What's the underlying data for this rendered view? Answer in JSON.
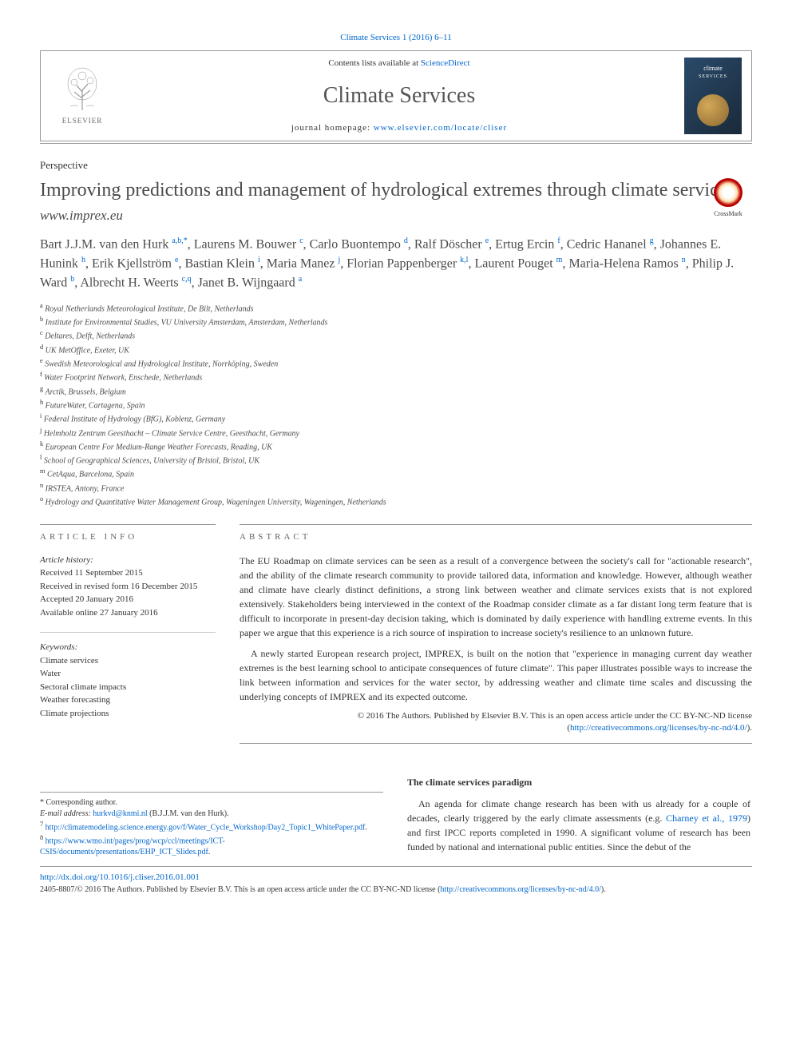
{
  "journal_ref": "Climate Services 1 (2016) 6–11",
  "header": {
    "contents_prefix": "Contents lists available at ",
    "contents_link": "ScienceDirect",
    "journal_name": "Climate Services",
    "homepage_prefix": "journal homepage: ",
    "homepage_link": "www.elsevier.com/locate/cliser",
    "publisher": "ELSEVIER",
    "cover_title": "climate",
    "cover_subtitle": "SERVICES"
  },
  "article_type": "Perspective",
  "title": "Improving predictions and management of hydrological extremes through climate services",
  "subtitle": "www.imprex.eu",
  "crossmark": "CrossMark",
  "authors_html": "Bart J.J.M. van den Hurk <sup>a,b,*</sup>, Laurens M. Bouwer <sup>c</sup>, Carlo Buontempo <sup>d</sup>, Ralf Döscher <sup>e</sup>, Ertug Ercin <sup>f</sup>, Cedric Hananel <sup>g</sup>, Johannes E. Hunink <sup>h</sup>, Erik Kjellström <sup>e</sup>, Bastian Klein <sup>i</sup>, Maria Manez <sup>j</sup>, Florian Pappenberger <sup>k,l</sup>, Laurent Pouget <sup>m</sup>, Maria-Helena Ramos <sup>n</sup>, Philip J. Ward <sup>b</sup>, Albrecht H. Weerts <sup>c,q</sup>, Janet B. Wijngaard <sup>a</sup>",
  "affiliations": [
    {
      "sup": "a",
      "text": "Royal Netherlands Meteorological Institute, De Bilt, Netherlands"
    },
    {
      "sup": "b",
      "text": "Institute for Environmental Studies, VU University Amsterdam, Amsterdam, Netherlands"
    },
    {
      "sup": "c",
      "text": "Deltares, Delft, Netherlands"
    },
    {
      "sup": "d",
      "text": "UK MetOffice, Exeter, UK"
    },
    {
      "sup": "e",
      "text": "Swedish Meteorological and Hydrological Institute, Norrköping, Sweden"
    },
    {
      "sup": "f",
      "text": "Water Footprint Network, Enschede, Netherlands"
    },
    {
      "sup": "g",
      "text": "Arctik, Brussels, Belgium"
    },
    {
      "sup": "h",
      "text": "FutureWater, Cartagena, Spain"
    },
    {
      "sup": "i",
      "text": "Federal Institute of Hydrology (BfG), Koblenz, Germany"
    },
    {
      "sup": "j",
      "text": "Helmholtz Zentrum Geesthacht – Climate Service Centre, Geesthacht, Germany"
    },
    {
      "sup": "k",
      "text": "European Centre For Medium-Range Weather Forecasts, Reading, UK"
    },
    {
      "sup": "l",
      "text": "School of Geographical Sciences, University of Bristol, Bristol, UK"
    },
    {
      "sup": "m",
      "text": "CetAqua, Barcelona, Spain"
    },
    {
      "sup": "n",
      "text": "IRSTEA, Antony, France"
    },
    {
      "sup": "o",
      "text": "Hydrology and Quantitative Water Management Group, Wageningen University, Wageningen, Netherlands"
    }
  ],
  "article_info": {
    "heading": "ARTICLE INFO",
    "history_label": "Article history:",
    "history": [
      "Received 11 September 2015",
      "Received in revised form 16 December 2015",
      "Accepted 20 January 2016",
      "Available online 27 January 2016"
    ],
    "keywords_label": "Keywords:",
    "keywords": [
      "Climate services",
      "Water",
      "Sectoral climate impacts",
      "Weather forecasting",
      "Climate projections"
    ]
  },
  "abstract": {
    "heading": "ABSTRACT",
    "paragraphs": [
      "The EU Roadmap on climate services can be seen as a result of a convergence between the society's call for \"actionable research\", and the ability of the climate research community to provide tailored data, information and knowledge. However, although weather and climate have clearly distinct definitions, a strong link between weather and climate services exists that is not explored extensively. Stakeholders being interviewed in the context of the Roadmap consider climate as a far distant long term feature that is difficult to incorporate in present-day decision taking, which is dominated by daily experience with handling extreme events. In this paper we argue that this experience is a rich source of inspiration to increase society's resilience to an unknown future.",
      "A newly started European research project, IMPREX, is built on the notion that \"experience in managing current day weather extremes is the best learning school to anticipate consequences of future climate\". This paper illustrates possible ways to increase the link between information and services for the water sector, by addressing weather and climate time scales and discussing the underlying concepts of IMPREX and its expected outcome."
    ],
    "copyright": "© 2016 The Authors. Published by Elsevier B.V. This is an open access article under the CC BY-NC-ND license (",
    "license_link": "http://creativecommons.org/licenses/by-nc-nd/4.0/",
    "copyright_suffix": ")."
  },
  "body": {
    "section_title": "The climate services paradigm",
    "text": "An agenda for climate change research has been with us already for a couple of decades, clearly triggered by the early climate assessments (e.g. Charney et al., 1979) and first IPCC reports completed in 1990. A significant volume of research has been funded by national and international public entities. Since the debut of the",
    "citation_link": "Charney et al., 1979"
  },
  "footnotes": {
    "corresponding": "* Corresponding author.",
    "email_label": "E-mail address: ",
    "email": "hurkvd@knmi.nl",
    "email_name": " (B.J.J.M. van den Hurk).",
    "notes": [
      {
        "sup": "7",
        "link": "http://climatemodeling.science.energy.gov/f/Water_Cycle_Workshop/Day2_Topic1_WhitePaper.pdf",
        "suffix": "."
      },
      {
        "sup": "8",
        "link": "https://www.wmo.int/pages/prog/wcp/ccl/meetings/ICT-CSIS/documents/presentations/EHP_ICT_Slides.pdf",
        "suffix": "."
      }
    ]
  },
  "footer": {
    "doi": "http://dx.doi.org/10.1016/j.cliser.2016.01.001",
    "issn_line": "2405-8807/© 2016 The Authors. Published by Elsevier B.V. This is an open access article under the CC BY-NC-ND license (",
    "license_link": "http://creativecommons.org/licenses/by-nc-nd/4.0/",
    "suffix": ")."
  },
  "colors": {
    "link": "#0066cc",
    "text": "#333333",
    "heading": "#4a4a4a",
    "border": "#999999"
  }
}
